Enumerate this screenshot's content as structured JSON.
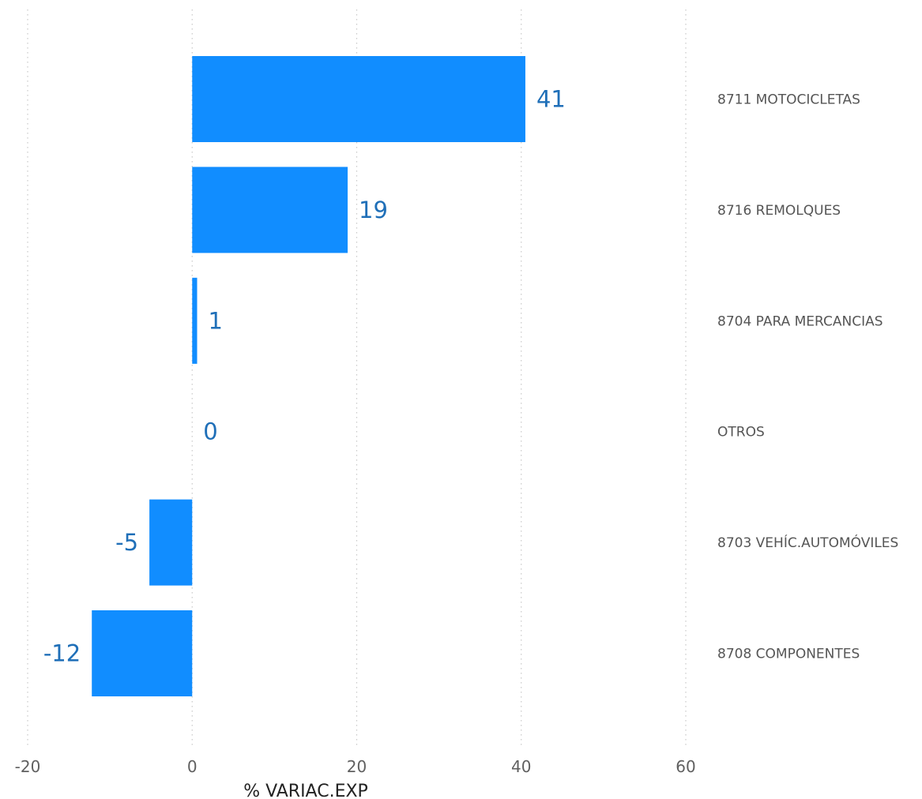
{
  "chart_data": {
    "type": "bar",
    "orientation": "horizontal",
    "categories": [
      "8711 MOTOCICLETAS",
      "8716 REMOLQUES",
      "8704 PARA MERCANCIAS",
      "OTROS",
      "8703 VEHÍC.AUTOMÓVILES",
      "8708 COMPONENTES"
    ],
    "values": [
      40.5,
      18.9,
      0.6,
      0,
      -5.2,
      -12.2
    ],
    "data_labels": [
      "41",
      "19",
      "1",
      "0",
      "-5",
      "-12"
    ],
    "xlabel": "% VARIAC.EXP",
    "xlim": [
      -20,
      60
    ],
    "xticks": [
      -20,
      0,
      20,
      40,
      60
    ],
    "xtick_labels": [
      "-20",
      "0",
      "20",
      "40",
      "60"
    ],
    "grid": "vertical dotted",
    "category_labels_position": "right",
    "bar_color": "#118dff",
    "label_color": "#1f6fb8"
  }
}
